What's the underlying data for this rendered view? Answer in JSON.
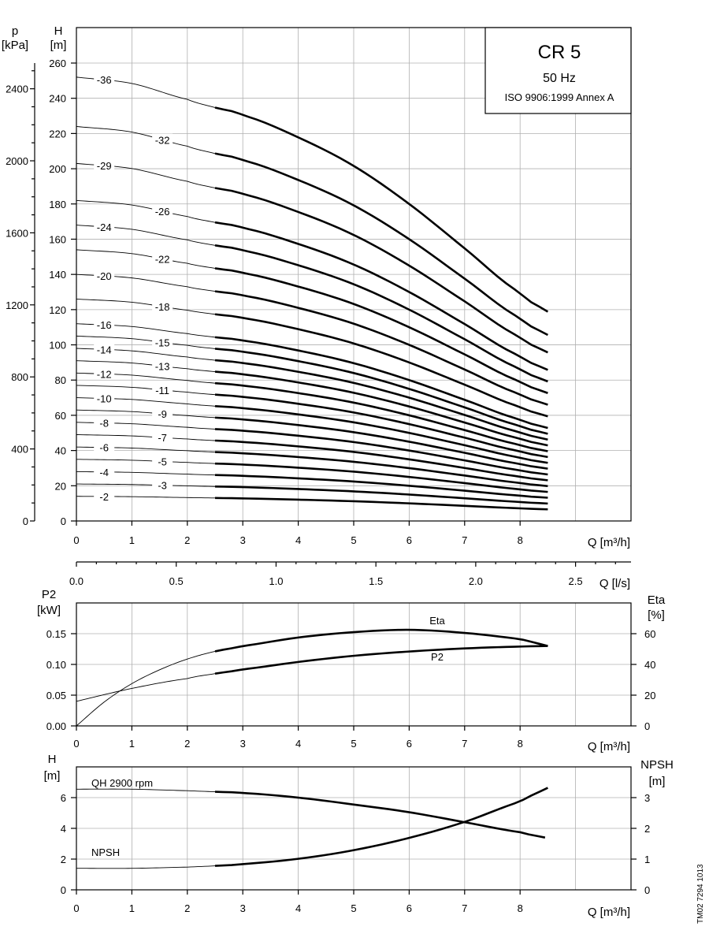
{
  "title_box": {
    "model": "CR 5",
    "frequency": "50 Hz",
    "standard": "ISO 9906:1999 Annex A"
  },
  "drawing_number": "TM02 7294 1013",
  "chart_data": [
    {
      "id": "qh",
      "type": "line",
      "x_axis": {
        "label": "Q [m³/h]",
        "range": [
          0,
          10
        ],
        "ticks": [
          0,
          1,
          2,
          3,
          4,
          5,
          6,
          7,
          8
        ]
      },
      "x2_axis": {
        "label": "Q [l/s]",
        "range": [
          0,
          2.78
        ],
        "ticks": [
          "0.0",
          "0.5",
          "1.0",
          "1.5",
          "2.0",
          "2.5"
        ]
      },
      "y_axis": {
        "label_top": "H",
        "label_unit": "[m]",
        "range": [
          0,
          260
        ],
        "ticks": [
          0,
          20,
          40,
          60,
          80,
          100,
          120,
          140,
          160,
          180,
          200,
          220,
          240,
          260
        ]
      },
      "y2_axis": {
        "label_top": "p",
        "label_unit": "[kPa]",
        "ticks": [
          0,
          400,
          800,
          1200,
          1600,
          2000,
          2400
        ]
      },
      "thin_range": [
        0,
        2.5
      ],
      "thick_range": [
        2.5,
        8.5
      ],
      "series": [
        {
          "name": "-2",
          "stages": 2,
          "label_at": 0.5
        },
        {
          "name": "-3",
          "stages": 3,
          "label_at": 1.55
        },
        {
          "name": "-4",
          "stages": 4,
          "label_at": 0.5
        },
        {
          "name": "-5",
          "stages": 5,
          "label_at": 1.55
        },
        {
          "name": "-6",
          "stages": 6,
          "label_at": 0.5
        },
        {
          "name": "-7",
          "stages": 7,
          "label_at": 1.55
        },
        {
          "name": "-8",
          "stages": 8,
          "label_at": 0.5
        },
        {
          "name": "-9",
          "stages": 9,
          "label_at": 1.55
        },
        {
          "name": "-10",
          "stages": 10,
          "label_at": 0.5
        },
        {
          "name": "-11",
          "stages": 11,
          "label_at": 1.55
        },
        {
          "name": "-12",
          "stages": 12,
          "label_at": 0.5
        },
        {
          "name": "-13",
          "stages": 13,
          "label_at": 1.55
        },
        {
          "name": "-14",
          "stages": 14,
          "label_at": 0.5
        },
        {
          "name": "-15",
          "stages": 15,
          "label_at": 1.55
        },
        {
          "name": "-16",
          "stages": 16,
          "label_at": 0.5
        },
        {
          "name": "-18",
          "stages": 18,
          "label_at": 1.55
        },
        {
          "name": "-20",
          "stages": 20,
          "label_at": 0.5
        },
        {
          "name": "-22",
          "stages": 22,
          "label_at": 1.55
        },
        {
          "name": "-24",
          "stages": 24,
          "label_at": 0.5
        },
        {
          "name": "-26",
          "stages": 26,
          "label_at": 1.55
        },
        {
          "name": "-29",
          "stages": 29,
          "label_at": 0.5
        },
        {
          "name": "-32",
          "stages": 32,
          "label_at": 1.55
        },
        {
          "name": "-36",
          "stages": 36,
          "label_at": 0.5
        }
      ],
      "per_stage_curve": {
        "q": [
          0,
          1,
          2,
          2.5,
          3,
          4,
          5,
          6,
          7,
          8,
          8.5
        ],
        "h": [
          7.0,
          6.9,
          6.65,
          6.52,
          6.4,
          6.05,
          5.6,
          5.0,
          4.3,
          3.6,
          3.3
        ]
      }
    },
    {
      "id": "p2_eta",
      "type": "line",
      "x_axis": {
        "label": "Q [m³/h]",
        "range": [
          0,
          10
        ],
        "ticks": [
          0,
          1,
          2,
          3,
          4,
          5,
          6,
          7,
          8
        ]
      },
      "y_axis": {
        "label_top": "P2",
        "label_unit": "[kW]",
        "range": [
          0,
          0.175
        ],
        "ticks": [
          "0.00",
          "0.05",
          "0.10",
          "0.15"
        ]
      },
      "y2_axis": {
        "label_top": "Eta",
        "label_unit": "[%]",
        "range": [
          0,
          70
        ],
        "ticks": [
          0,
          20,
          40,
          60
        ]
      },
      "thin_range": [
        0,
        2.5
      ],
      "thick_range": [
        2.5,
        8.5
      ],
      "series": [
        {
          "name": "Eta",
          "axis": "right",
          "x": [
            0,
            0.5,
            1,
            1.5,
            2,
            2.5,
            3,
            4,
            5,
            6,
            7,
            8,
            8.5
          ],
          "y": [
            0,
            15.5,
            27.5,
            36.5,
            43.5,
            48.5,
            52,
            57.5,
            61,
            62.5,
            60.5,
            56.5,
            52
          ]
        },
        {
          "name": "P2",
          "axis": "left",
          "x": [
            0,
            1,
            2,
            2.5,
            3,
            4,
            5,
            6,
            7,
            8,
            8.5
          ],
          "y": [
            0.04,
            0.061,
            0.077,
            0.085,
            0.092,
            0.104,
            0.114,
            0.121,
            0.126,
            0.129,
            0.13
          ]
        }
      ]
    },
    {
      "id": "h_npsh",
      "type": "line",
      "x_axis": {
        "label": "Q [m³/h]",
        "range": [
          0,
          10
        ],
        "ticks": [
          0,
          1,
          2,
          3,
          4,
          5,
          6,
          7,
          8
        ]
      },
      "y_axis": {
        "label_top": "H",
        "label_unit": "[m]",
        "range": [
          0,
          8
        ],
        "ticks": [
          0,
          2,
          4,
          6
        ]
      },
      "y2_axis": {
        "label_top": "NPSH",
        "label_unit": "[m]",
        "range": [
          0,
          4
        ],
        "ticks": [
          0,
          1,
          2,
          3
        ]
      },
      "thin_range": [
        0,
        2.5
      ],
      "thick_range": [
        2.5,
        8.5
      ],
      "series": [
        {
          "name": "QH 2900 rpm",
          "axis": "left",
          "x": [
            0,
            1,
            2,
            2.5,
            3,
            4,
            5,
            6,
            7,
            8,
            8.45
          ],
          "y": [
            6.55,
            6.55,
            6.45,
            6.38,
            6.3,
            6.0,
            5.55,
            5.05,
            4.4,
            3.75,
            3.4
          ]
        },
        {
          "name": "NPSH",
          "axis": "right",
          "x": [
            0,
            1,
            2,
            2.5,
            3,
            4,
            5,
            6,
            7,
            8,
            8.5
          ],
          "y": [
            0.7,
            0.7,
            0.74,
            0.78,
            0.84,
            1.01,
            1.29,
            1.69,
            2.21,
            2.87,
            3.32
          ]
        }
      ]
    }
  ]
}
